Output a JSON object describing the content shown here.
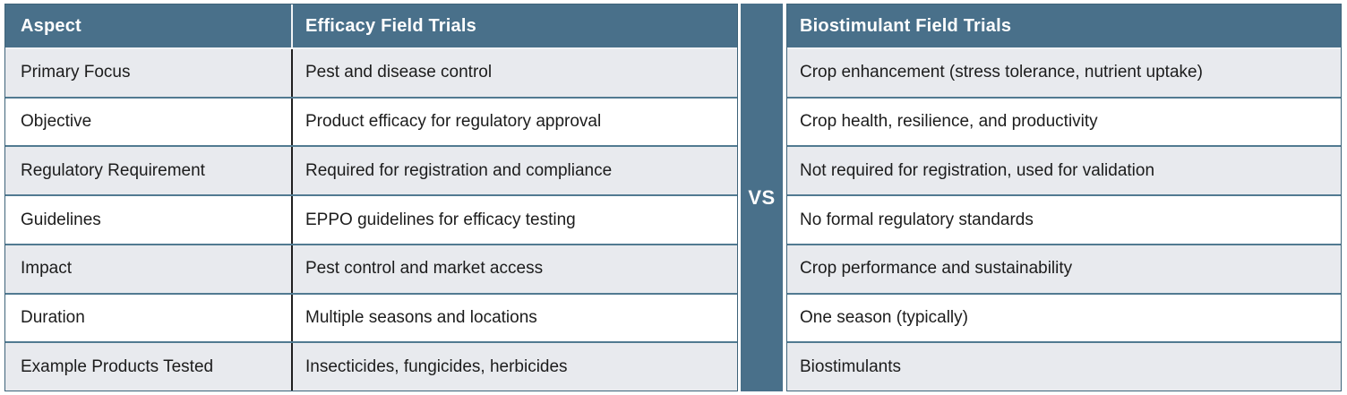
{
  "colors": {
    "header_bg": "#49708a",
    "vs_bg": "#49708a",
    "row_alt_bg": "#e8eaee",
    "row_bg": "#ffffff",
    "row_separator": "#517a91",
    "column_divider": "#1f1f1f",
    "header_text": "#ffffff",
    "body_text": "#1c1c1c"
  },
  "divider": {
    "label": "VS"
  },
  "left_table": {
    "headers": {
      "aspect": "Aspect",
      "value": "Efficacy Field Trials"
    },
    "rows": [
      {
        "aspect": "Primary Focus",
        "value": "Pest and disease control"
      },
      {
        "aspect": "Objective",
        "value": "Product efficacy for regulatory approval"
      },
      {
        "aspect": "Regulatory Requirement",
        "value": "Required for registration and compliance"
      },
      {
        "aspect": "Guidelines",
        "value": "EPPO guidelines for efficacy testing"
      },
      {
        "aspect": "Impact",
        "value": "Pest control and market access"
      },
      {
        "aspect": "Duration",
        "value": "Multiple seasons and locations"
      },
      {
        "aspect": "Example Products Tested",
        "value": "Insecticides, fungicides, herbicides"
      }
    ]
  },
  "right_table": {
    "header": "Biostimulant Field Trials",
    "rows": [
      {
        "value": "Crop enhancement (stress tolerance, nutrient uptake)"
      },
      {
        "value": "Crop health, resilience, and productivity"
      },
      {
        "value": "Not required for registration, used for validation"
      },
      {
        "value": "No formal regulatory standards"
      },
      {
        "value": "Crop performance and sustainability"
      },
      {
        "value": "One season (typically)"
      },
      {
        "value": "Biostimulants"
      }
    ]
  }
}
